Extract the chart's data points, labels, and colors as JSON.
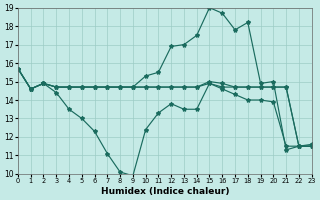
{
  "xlabel": "Humidex (Indice chaleur)",
  "xlim": [
    0,
    23
  ],
  "ylim": [
    10,
    19
  ],
  "xticks": [
    0,
    1,
    2,
    3,
    4,
    5,
    6,
    7,
    8,
    9,
    10,
    11,
    12,
    13,
    14,
    15,
    16,
    17,
    18,
    19,
    20,
    21,
    22,
    23
  ],
  "yticks": [
    10,
    11,
    12,
    13,
    14,
    15,
    16,
    17,
    18,
    19
  ],
  "bg_color": "#c5eae6",
  "grid_color": "#9dccc6",
  "line_color": "#1a6b5e",
  "series": [
    {
      "x": [
        0,
        1,
        2,
        3,
        4,
        5,
        6,
        7,
        8,
        9,
        10,
        11,
        12,
        13,
        14,
        15,
        16,
        17,
        18,
        19,
        20,
        21,
        22,
        23
      ],
      "y": [
        15.7,
        14.6,
        14.9,
        14.7,
        14.7,
        14.7,
        14.7,
        14.7,
        14.7,
        14.7,
        15.3,
        15.5,
        16.9,
        17.0,
        17.5,
        19.0,
        18.7,
        17.8,
        18.2,
        14.9,
        15.0,
        11.3,
        11.5,
        11.6
      ]
    },
    {
      "x": [
        0,
        1,
        2,
        3,
        4,
        5,
        6,
        7,
        8,
        9,
        10,
        11,
        12,
        13,
        14,
        15,
        16,
        17,
        18,
        19,
        20,
        21,
        22,
        23
      ],
      "y": [
        15.7,
        14.6,
        14.9,
        14.4,
        13.5,
        13.0,
        12.3,
        11.1,
        10.1,
        9.9,
        12.4,
        13.3,
        13.8,
        13.5,
        13.5,
        14.9,
        14.7,
        14.7,
        14.7,
        14.7,
        14.7,
        14.7,
        11.5,
        11.5
      ]
    },
    {
      "x": [
        0,
        1,
        2,
        3,
        4,
        5,
        6,
        7,
        8,
        9,
        10,
        11,
        12,
        13,
        14,
        15,
        16,
        17,
        18,
        19,
        20,
        21,
        22,
        23
      ],
      "y": [
        15.7,
        14.6,
        14.9,
        14.7,
        14.7,
        14.7,
        14.7,
        14.7,
        14.7,
        14.7,
        14.7,
        14.7,
        14.7,
        14.7,
        14.7,
        14.9,
        14.6,
        14.3,
        14.0,
        14.0,
        13.9,
        11.5,
        11.5,
        11.5
      ]
    },
    {
      "x": [
        0,
        1,
        2,
        3,
        4,
        5,
        6,
        7,
        8,
        9,
        10,
        11,
        12,
        13,
        14,
        15,
        16,
        17,
        18,
        19,
        20,
        21,
        22,
        23
      ],
      "y": [
        15.7,
        14.6,
        14.9,
        14.7,
        14.7,
        14.7,
        14.7,
        14.7,
        14.7,
        14.7,
        14.7,
        14.7,
        14.7,
        14.7,
        14.7,
        15.0,
        14.9,
        14.7,
        14.7,
        14.7,
        14.7,
        14.7,
        11.5,
        11.5
      ]
    }
  ]
}
